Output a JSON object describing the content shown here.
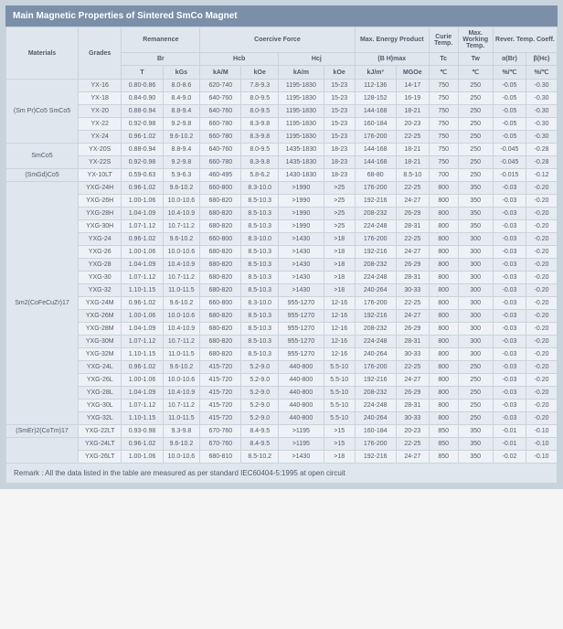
{
  "title": "Main Magnetic Properties of Sintered SmCo Magnet",
  "header": {
    "materials": "Materials",
    "grades": "Grades",
    "remanence": "Remanence",
    "coercive": "Coercive Force",
    "energy": "Max. Energy Product",
    "curie": "Curie Temp.",
    "maxwork": "Max. Working Temp.",
    "rever": "Rever. Temp. Coeff.",
    "br": "Br",
    "hcb": "Hcb",
    "hcj": "Hcj",
    "bhmax": "(B H)max",
    "tc": "Tc",
    "tw": "Tw",
    "abr": "α(Br)",
    "bhc": "β(Hc)",
    "t": "T",
    "kgs": "kGs",
    "kam": "kA/M",
    "koe1": "kOe",
    "kam2": "kA/m",
    "koe2": "kOe",
    "kjm3": "kJ/m³",
    "mgoe": "MGOe",
    "c1": "℃",
    "c2": "℃",
    "pc1": "%/℃",
    "pc2": "%/℃"
  },
  "materials": {
    "m1": "(Sm Pr)Co5\nSmCo5",
    "m2": "SmCo5",
    "m3": "(SmGd)Co5",
    "m4": "Sm2(CoFeCuZr)17",
    "m5": "(SmEr)2(CoTm)17",
    "m6": ""
  },
  "rows": [
    [
      "YX-16",
      "0.80-0.86",
      "8.0-8.6",
      "620-740",
      "7.8-9.3",
      "1195-1830",
      "15-23",
      "112-136",
      "14-17",
      "750",
      "250",
      "-0.05",
      "-0.30"
    ],
    [
      "YX-18",
      "0.84-0.90",
      "8.4-9.0",
      "640-760",
      "8.0-9.5",
      "1195-1830",
      "15-23",
      "128-152",
      "16-19",
      "750",
      "250",
      "-0.05",
      "-0.30"
    ],
    [
      "YX-20",
      "0.88-0.94",
      "8.8-9.4",
      "640-760",
      "8.0-9.5",
      "1195-1830",
      "15-23",
      "144-168",
      "18-21",
      "750",
      "250",
      "-0.05",
      "-0.30"
    ],
    [
      "YX-22",
      "0.92-0.98",
      "9.2-9.8",
      "660-780",
      "8.3-9.8",
      "1195-1830",
      "15-23",
      "160-184",
      "20-23",
      "750",
      "250",
      "-0.05",
      "-0.30"
    ],
    [
      "YX-24",
      "0.96-1.02",
      "9.6-10.2",
      "660-780",
      "8.3-9.8",
      "1195-1830",
      "15-23",
      "176-200",
      "22-25",
      "750",
      "250",
      "-0.05",
      "-0.30"
    ],
    [
      "YX-20S",
      "0.88-0.94",
      "8.8-9.4",
      "640-760",
      "8.0-9.5",
      "1435-1830",
      "18-23",
      "144-168",
      "18-21",
      "750",
      "250",
      "-0.045",
      "-0.28"
    ],
    [
      "YX-22S",
      "0.92-0.98",
      "9.2-9.8",
      "660-780",
      "8.3-9.8",
      "1435-1830",
      "18-23",
      "144-168",
      "18-21",
      "750",
      "250",
      "-0.045",
      "-0.28"
    ],
    [
      "YX-10LT",
      "0.59-0.63",
      "5.9-6.3",
      "460-495",
      "5.8-6.2",
      "1430-1830",
      "18-23",
      "68-80",
      "8.5-10",
      "700",
      "250",
      "-0.015",
      "-0.12"
    ],
    [
      "YXG-24H",
      "0.96-1.02",
      "9.6-10.2",
      "660-800",
      "8.3-10.0",
      ">1990",
      ">25",
      "176-200",
      "22-25",
      "800",
      "350",
      "-0.03",
      "-0.20"
    ],
    [
      "YXG-26H",
      "1.00-1.06",
      "10.0-10.6",
      "680-820",
      "8.5-10.3",
      ">1990",
      ">25",
      "192-216",
      "24-27",
      "800",
      "350",
      "-0.03",
      "-0.20"
    ],
    [
      "YXG-28H",
      "1.04-1.09",
      "10.4-10.9",
      "680-820",
      "8.5-10.3",
      ">1990",
      ">25",
      "208-232",
      "26-29",
      "800",
      "350",
      "-0.03",
      "-0.20"
    ],
    [
      "YXG-30H",
      "1.07-1.12",
      "10.7-11.2",
      "680-820",
      "8.5-10.3",
      ">1990",
      ">25",
      "224-248",
      "28-31",
      "800",
      "350",
      "-0.03",
      "-0.20"
    ],
    [
      "YXG-24",
      "0.96-1.02",
      "9.6-10.2",
      "660-800",
      "8.3-10.0",
      ">1430",
      ">18",
      "176-200",
      "22-25",
      "800",
      "300",
      "-0.03",
      "-0.20"
    ],
    [
      "YXG-26",
      "1.00-1.06",
      "10.0-10.6",
      "680-820",
      "8.5-10.3",
      ">1430",
      ">18",
      "192-216",
      "24-27",
      "800",
      "300",
      "-0.03",
      "-0.20"
    ],
    [
      "YXG-28",
      "1.04-1.09",
      "10.4-10.9",
      "680-820",
      "8.5-10.3",
      ">1430",
      ">18",
      "208-232",
      "26-29",
      "800",
      "300",
      "-0.03",
      "-0.20"
    ],
    [
      "YXG-30",
      "1.07-1.12",
      "10.7-11.2",
      "680-820",
      "8.5-10.3",
      ">1430",
      ">18",
      "224-248",
      "28-31",
      "800",
      "300",
      "-0.03",
      "-0.20"
    ],
    [
      "YXG-32",
      "1.10-1.15",
      "11.0-11.5",
      "680-820",
      "8.5-10.3",
      ">1430",
      ">18",
      "240-264",
      "30-33",
      "800",
      "300",
      "-0.03",
      "-0.20"
    ],
    [
      "YXG-24M",
      "0.96-1.02",
      "9.6-10.2",
      "660-800",
      "8.3-10.0",
      "955-1270",
      "12-16",
      "176-200",
      "22-25",
      "800",
      "300",
      "-0.03",
      "-0.20"
    ],
    [
      "YXG-26M",
      "1.00-1.06",
      "10.0-10.6",
      "680-820",
      "8.5-10.3",
      "955-1270",
      "12-16",
      "192-216",
      "24-27",
      "800",
      "300",
      "-0.03",
      "-0.20"
    ],
    [
      "YXG-28M",
      "1.04-1.09",
      "10.4-10.9",
      "680-820",
      "8.5-10.3",
      "955-1270",
      "12-16",
      "208-232",
      "26-29",
      "800",
      "300",
      "-0.03",
      "-0.20"
    ],
    [
      "YXG-30M",
      "1.07-1.12",
      "10.7-11.2",
      "680-820",
      "8.5-10.3",
      "955-1270",
      "12-16",
      "224-248",
      "28-31",
      "800",
      "300",
      "-0.03",
      "-0.20"
    ],
    [
      "YXG-32M",
      "1.10-1.15",
      "11.0-11.5",
      "680-820",
      "8.5-10.3",
      "955-1270",
      "12-16",
      "240-264",
      "30-33",
      "800",
      "300",
      "-0.03",
      "-0.20"
    ],
    [
      "YXG-24L",
      "0.96-1.02",
      "9.6-10.2",
      "415-720",
      "5.2-9.0",
      "440-800",
      "5.5-10",
      "176-200",
      "22-25",
      "800",
      "250",
      "-0.03",
      "-0.20"
    ],
    [
      "YXG-26L",
      "1.00-1.06",
      "10.0-10.6",
      "415-720",
      "5.2-9.0",
      "440-800",
      "5.5-10",
      "192-216",
      "24-27",
      "800",
      "250",
      "-0.03",
      "-0.20"
    ],
    [
      "YXG-28L",
      "1.04-1.09",
      "10.4-10.9",
      "415-720",
      "5.2-9.0",
      "440-800",
      "5.5-10",
      "208-232",
      "26-29",
      "800",
      "250",
      "-0.03",
      "-0.20"
    ],
    [
      "YXG-30L",
      "1.07-1.12",
      "10.7-11.2",
      "415-720",
      "5.2-9.0",
      "440-800",
      "5.5-10",
      "224-248",
      "28-31",
      "800",
      "250",
      "-0.03",
      "-0.20"
    ],
    [
      "YXG-32L",
      "1.10-1.15",
      "11.0-11.5",
      "415-720",
      "5.2-9.0",
      "440-800",
      "5.5-10",
      "240-264",
      "30-33",
      "800",
      "250",
      "-0.03",
      "-0.20"
    ],
    [
      "YXG-22LT",
      "0.93-0.98",
      "9.3-9.8",
      "670-760",
      "8.4-9.5",
      ">1195",
      ">15",
      "160-184",
      "20-23",
      "850",
      "350",
      "-0.01",
      "-0.10"
    ],
    [
      "YXG-24LT",
      "0.96-1.02",
      "9.6-10.2",
      "670-760",
      "8.4-9.5",
      ">1195",
      ">15",
      "176-200",
      "22-25",
      "850",
      "350",
      "-0.01",
      "-0.10"
    ],
    [
      "YXG-26LT",
      "1.00-1.06",
      "10.0-10.6",
      "680-810",
      "8.5-10.2",
      ">1430",
      ">18",
      "192-216",
      "24-27",
      "850",
      "350",
      "-0.02",
      "-0.10"
    ]
  ],
  "remark": "Remark : All the data listed in the table are measured as per standard IEC60404-5:1995 at open circuit"
}
